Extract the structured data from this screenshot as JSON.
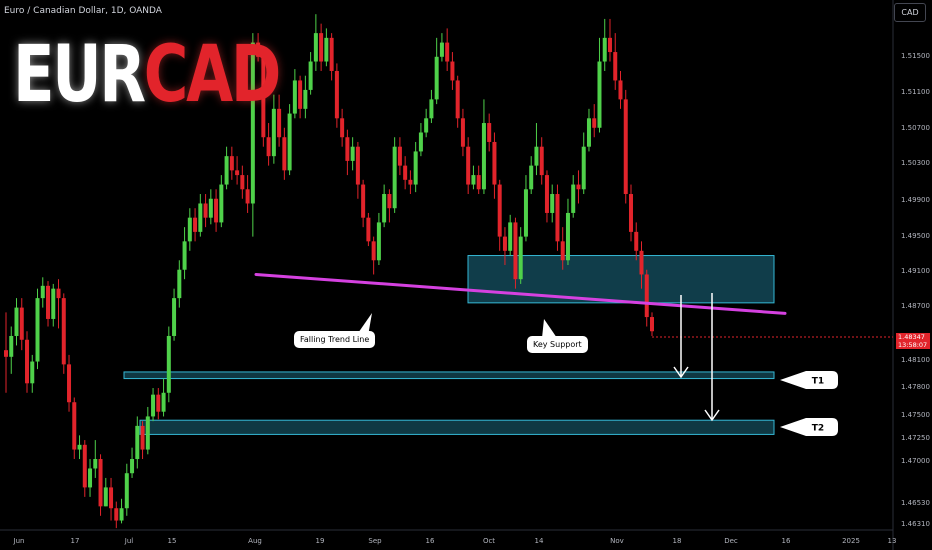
{
  "header": {
    "symbol_line": "Euro / Canadian Dollar, 1D, OANDA",
    "currency_button": "CAD"
  },
  "logo": {
    "part1": "EUR",
    "part2": "CAD"
  },
  "chart_data": {
    "type": "candlestick",
    "title": "Euro / Canadian Dollar, 1D, OANDA",
    "x_ticks": [
      "Jun",
      "17",
      "Jul",
      "15",
      "Aug",
      "19",
      "Sep",
      "16",
      "Oct",
      "14",
      "Nov",
      "18",
      "Dec",
      "16",
      "2025",
      "13"
    ],
    "y_ticks": [
      "1.51500",
      "1.51100",
      "1.50700",
      "1.50300",
      "1.49900",
      "1.49500",
      "1.49100",
      "1.48700",
      "1.48300",
      "1.48100",
      "1.47800",
      "1.47500",
      "1.47250",
      "1.47000",
      "1.46530",
      "1.46310"
    ],
    "ylim": [
      1.4625,
      1.5185
    ],
    "last_price": {
      "value": "1.48347",
      "countdown": "13:58:07"
    },
    "colors": {
      "up": "#4fd14a",
      "down": "#e2242b",
      "trend_line": "#d541e0",
      "zone_fill": "#1d6f86",
      "zone_edge": "#35b8d6"
    },
    "annotations": [
      {
        "label": "Falling Trend Line",
        "type": "trend_line"
      },
      {
        "label": "Key Support",
        "type": "zone"
      },
      {
        "label": "T1",
        "type": "target",
        "low": 1.4785,
        "high": 1.4792
      },
      {
        "label": "T2",
        "type": "target",
        "low": 1.4726,
        "high": 1.4741
      }
    ],
    "support_zone": {
      "low": 1.4865,
      "high": 1.4915
    },
    "trend_line": {
      "start": 1.4895,
      "end": 1.4857
    },
    "candles": [
      [
        1.4815,
        1.4808,
        1.4855,
        1.477
      ],
      [
        1.4808,
        1.483,
        1.484,
        1.479
      ],
      [
        1.483,
        1.486,
        1.487,
        1.482
      ],
      [
        1.486,
        1.4826,
        1.487,
        1.4815
      ],
      [
        1.4826,
        1.478,
        1.4835,
        1.477
      ],
      [
        1.478,
        1.4803,
        1.481,
        1.477
      ],
      [
        1.4803,
        1.487,
        1.488,
        1.4795
      ],
      [
        1.487,
        1.4883,
        1.4892,
        1.486
      ],
      [
        1.4883,
        1.4848,
        1.4888,
        1.484
      ],
      [
        1.4848,
        1.488,
        1.4885,
        1.484
      ],
      [
        1.488,
        1.487,
        1.489,
        1.4838
      ],
      [
        1.487,
        1.48,
        1.4875,
        1.479
      ],
      [
        1.48,
        1.476,
        1.481,
        1.475
      ],
      [
        1.476,
        1.471,
        1.4765,
        1.47
      ],
      [
        1.471,
        1.4715,
        1.4725,
        1.47
      ],
      [
        1.4715,
        1.467,
        1.472,
        1.466
      ],
      [
        1.467,
        1.469,
        1.47,
        1.466
      ],
      [
        1.469,
        1.47,
        1.472,
        1.468
      ],
      [
        1.47,
        1.465,
        1.4705,
        1.464
      ],
      [
        1.465,
        1.467,
        1.468,
        1.465
      ],
      [
        1.467,
        1.4648,
        1.468,
        1.4635
      ],
      [
        1.4648,
        1.4635,
        1.4655,
        1.4627
      ],
      [
        1.4635,
        1.4648,
        1.4658,
        1.4632
      ],
      [
        1.4648,
        1.4685,
        1.4695,
        1.464
      ],
      [
        1.4685,
        1.47,
        1.4712,
        1.468
      ],
      [
        1.47,
        1.4735,
        1.4745,
        1.469
      ],
      [
        1.4735,
        1.471,
        1.474,
        1.47
      ],
      [
        1.471,
        1.4745,
        1.4755,
        1.4705
      ],
      [
        1.4745,
        1.4768,
        1.4775,
        1.474
      ],
      [
        1.4768,
        1.475,
        1.4775,
        1.4742
      ],
      [
        1.475,
        1.477,
        1.4785,
        1.4745
      ],
      [
        1.477,
        1.483,
        1.484,
        1.476
      ],
      [
        1.483,
        1.487,
        1.488,
        1.4825
      ],
      [
        1.487,
        1.49,
        1.491,
        1.486
      ],
      [
        1.49,
        1.493,
        1.4945,
        1.489
      ],
      [
        1.493,
        1.4955,
        1.4965,
        1.492
      ],
      [
        1.4955,
        1.494,
        1.4965,
        1.493
      ],
      [
        1.494,
        1.497,
        1.498,
        1.4935
      ],
      [
        1.497,
        1.4955,
        1.498,
        1.4945
      ],
      [
        1.4955,
        1.4975,
        1.4985,
        1.4948
      ],
      [
        1.4975,
        1.495,
        1.4985,
        1.494
      ],
      [
        1.495,
        1.499,
        1.5,
        1.4945
      ],
      [
        1.499,
        1.502,
        1.503,
        1.4985
      ],
      [
        1.502,
        1.5005,
        1.503,
        1.4995
      ],
      [
        1.5005,
        1.5,
        1.502,
        1.499
      ],
      [
        1.5,
        1.4985,
        1.501,
        1.4975
      ],
      [
        1.4985,
        1.497,
        1.5,
        1.496
      ],
      [
        1.497,
        1.514,
        1.515,
        1.4935
      ],
      [
        1.514,
        1.5125,
        1.515,
        1.512
      ],
      [
        1.5125,
        1.504,
        1.5135,
        1.503
      ],
      [
        1.504,
        1.502,
        1.5055,
        1.501
      ],
      [
        1.502,
        1.507,
        1.5085,
        1.5012
      ],
      [
        1.507,
        1.504,
        1.5085,
        1.503
      ],
      [
        1.504,
        1.5005,
        1.505,
        1.4995
      ],
      [
        1.5005,
        1.5065,
        1.5075,
        1.5
      ],
      [
        1.5065,
        1.51,
        1.5112,
        1.506
      ],
      [
        1.51,
        1.507,
        1.5105,
        1.506
      ],
      [
        1.507,
        1.509,
        1.5105,
        1.506
      ],
      [
        1.509,
        1.512,
        1.513,
        1.5085
      ],
      [
        1.512,
        1.515,
        1.517,
        1.511
      ],
      [
        1.515,
        1.512,
        1.516,
        1.511
      ],
      [
        1.512,
        1.5145,
        1.5155,
        1.5115
      ],
      [
        1.5145,
        1.511,
        1.515,
        1.51
      ],
      [
        1.511,
        1.506,
        1.5118,
        1.505
      ],
      [
        1.506,
        1.504,
        1.507,
        1.503
      ],
      [
        1.504,
        1.5015,
        1.5048,
        1.5
      ],
      [
        1.5015,
        1.503,
        1.504,
        1.5005
      ],
      [
        1.503,
        1.499,
        1.5035,
        1.4975
      ],
      [
        1.499,
        1.4955,
        1.4995,
        1.4945
      ],
      [
        1.4955,
        1.493,
        1.496,
        1.4925
      ],
      [
        1.493,
        1.491,
        1.4935,
        1.4895
      ],
      [
        1.491,
        1.495,
        1.496,
        1.4905
      ],
      [
        1.495,
        1.498,
        1.499,
        1.4945
      ],
      [
        1.498,
        1.4965,
        1.4985,
        1.495
      ],
      [
        1.4965,
        1.503,
        1.504,
        1.496
      ],
      [
        1.503,
        1.501,
        1.504,
        1.5
      ],
      [
        1.501,
        1.4995,
        1.502,
        1.4985
      ],
      [
        1.4995,
        1.499,
        1.5005,
        1.498
      ],
      [
        1.499,
        1.5025,
        1.5035,
        1.4982
      ],
      [
        1.5025,
        1.5045,
        1.5055,
        1.502
      ],
      [
        1.5045,
        1.506,
        1.507,
        1.504
      ],
      [
        1.506,
        1.508,
        1.509,
        1.5055
      ],
      [
        1.508,
        1.5125,
        1.5145,
        1.5075
      ],
      [
        1.5125,
        1.514,
        1.515,
        1.512
      ],
      [
        1.514,
        1.512,
        1.5155,
        1.511
      ],
      [
        1.512,
        1.51,
        1.513,
        1.509
      ],
      [
        1.51,
        1.506,
        1.5105,
        1.505
      ],
      [
        1.506,
        1.503,
        1.507,
        1.502
      ],
      [
        1.503,
        1.499,
        1.504,
        1.498
      ],
      [
        1.499,
        1.5,
        1.501,
        1.4985
      ],
      [
        1.5,
        1.4985,
        1.501,
        1.498
      ],
      [
        1.4985,
        1.5055,
        1.508,
        1.498
      ],
      [
        1.5055,
        1.5035,
        1.5065,
        1.5025
      ],
      [
        1.5035,
        1.499,
        1.5045,
        1.4975
      ],
      [
        1.499,
        1.4935,
        1.4995,
        1.492
      ],
      [
        1.4935,
        1.492,
        1.4945,
        1.4905
      ],
      [
        1.492,
        1.495,
        1.4958,
        1.4915
      ],
      [
        1.495,
        1.489,
        1.4955,
        1.488
      ],
      [
        1.489,
        1.4935,
        1.4945,
        1.4885
      ],
      [
        1.4935,
        1.4985,
        1.5,
        1.493
      ],
      [
        1.4985,
        1.501,
        1.502,
        1.498
      ],
      [
        1.501,
        1.503,
        1.5055,
        1.5
      ],
      [
        1.503,
        1.5,
        1.504,
        1.499
      ],
      [
        1.5,
        1.496,
        1.5005,
        1.495
      ],
      [
        1.496,
        1.498,
        1.499,
        1.495
      ],
      [
        1.498,
        1.493,
        1.499,
        1.492
      ],
      [
        1.493,
        1.491,
        1.4945,
        1.49
      ],
      [
        1.491,
        1.496,
        1.4975,
        1.4905
      ],
      [
        1.496,
        1.499,
        1.5,
        1.4955
      ],
      [
        1.499,
        1.4985,
        1.5005,
        1.497
      ],
      [
        1.4985,
        1.503,
        1.5045,
        1.498
      ],
      [
        1.503,
        1.506,
        1.507,
        1.5025
      ],
      [
        1.506,
        1.505,
        1.5075,
        1.504
      ],
      [
        1.505,
        1.512,
        1.5145,
        1.5045
      ],
      [
        1.512,
        1.5145,
        1.5165,
        1.511
      ],
      [
        1.5145,
        1.513,
        1.5165,
        1.512
      ],
      [
        1.513,
        1.51,
        1.515,
        1.509
      ],
      [
        1.51,
        1.508,
        1.511,
        1.507
      ],
      [
        1.508,
        1.498,
        1.509,
        1.497
      ],
      [
        1.498,
        1.494,
        1.499,
        1.493
      ],
      [
        1.494,
        1.492,
        1.495,
        1.491
      ],
      [
        1.492,
        1.4895,
        1.493,
        1.488
      ],
      [
        1.4895,
        1.485,
        1.49,
        1.484
      ],
      [
        1.485,
        1.4835,
        1.4855,
        1.483
      ]
    ]
  }
}
